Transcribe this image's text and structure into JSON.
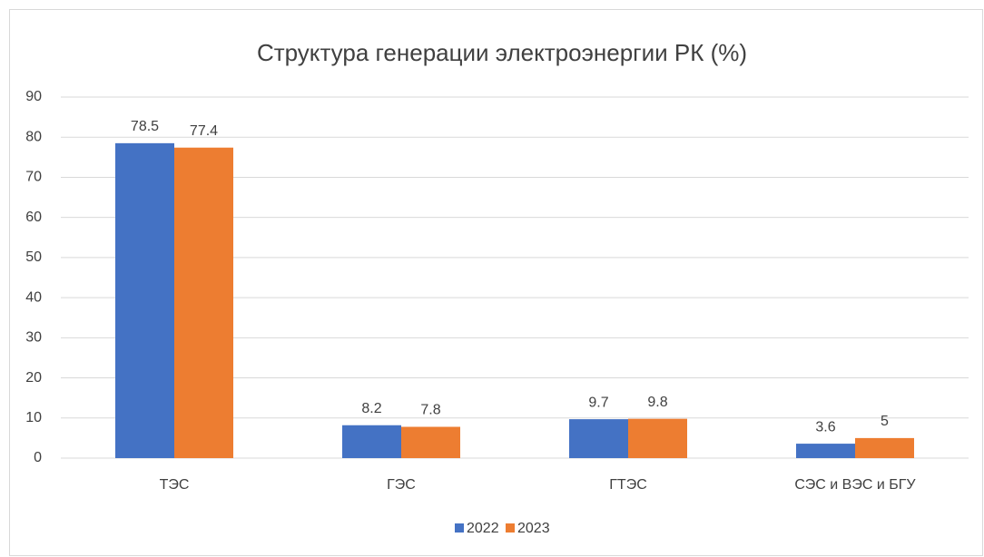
{
  "chart_data": {
    "type": "bar",
    "title": "Структура генерации электроэнергии РК (%)",
    "categories": [
      "ТЭС",
      "ГЭС",
      "ГТЭС",
      "СЭС и ВЭС и БГУ"
    ],
    "series": [
      {
        "name": "2022",
        "color": "#4472c4",
        "values": [
          78.5,
          8.2,
          9.7,
          3.6
        ]
      },
      {
        "name": "2023",
        "color": "#ed7d31",
        "values": [
          77.4,
          7.8,
          9.8,
          5
        ]
      }
    ],
    "ylim": [
      0,
      90
    ],
    "yticks": [
      0,
      10,
      20,
      30,
      40,
      50,
      60,
      70,
      80,
      90
    ],
    "grid": true,
    "legend": "bottom"
  }
}
